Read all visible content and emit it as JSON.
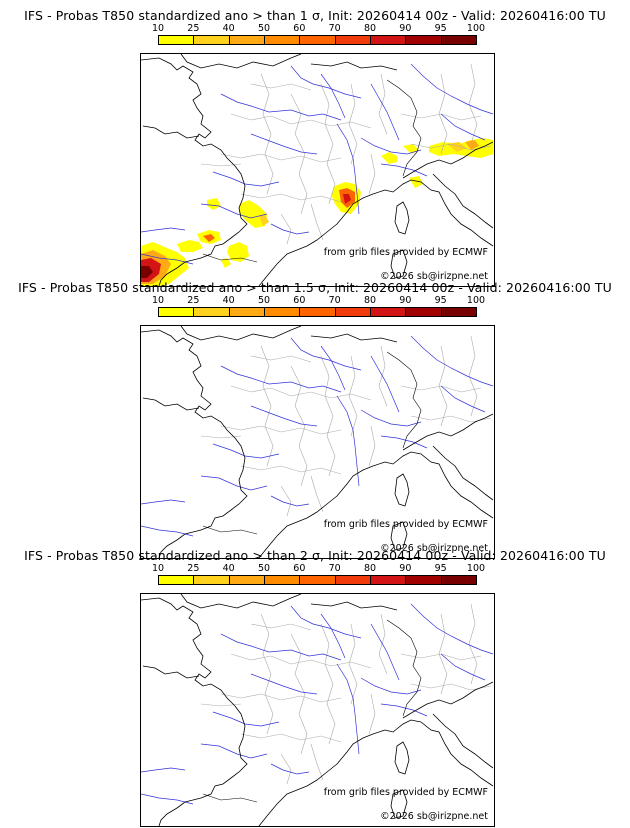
{
  "panels": [
    {
      "title": "IFS - Probas T850  standardized ano > than 1 σ, Init: 20260414 00z - Valid: 20260416:00 TU",
      "threshold_sigma": 1,
      "has_probability_areas": true
    },
    {
      "title": "IFS - Probas T850  standardized ano > than 1.5 σ, Init: 20260414 00z - Valid: 20260416:00 TU",
      "threshold_sigma": 1.5,
      "has_probability_areas": false
    },
    {
      "title": "IFS - Probas T850  standardized ano > than 2 σ, Init: 20260414 00z - Valid: 20260416:00 TU",
      "threshold_sigma": 2,
      "has_probability_areas": false
    }
  ],
  "colorbar": {
    "labels": [
      "10",
      "25",
      "40",
      "50",
      "60",
      "70",
      "80",
      "90",
      "95",
      "100"
    ],
    "colors": [
      "#ffff00",
      "#ffd21e",
      "#ffaa14",
      "#ff8c00",
      "#ff6400",
      "#f03c0a",
      "#d21414",
      "#a00000",
      "#780000"
    ]
  },
  "credits": {
    "source": "from grib files provided by ECMWF",
    "copyright": "©2026 sb@irizpne.net"
  },
  "colors": {
    "rivers": "#3232dc",
    "borders": "#aaaaaa",
    "coast": "#000000"
  }
}
